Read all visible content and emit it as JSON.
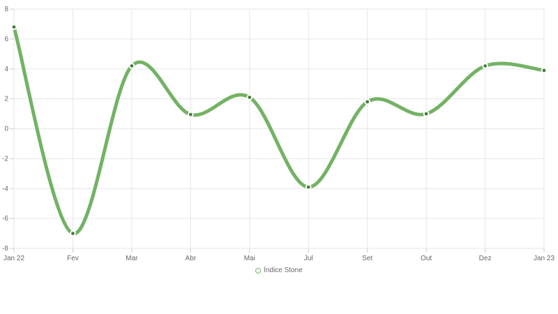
{
  "chart_data": {
    "type": "line",
    "smooth": true,
    "categories": [
      "Jan 22",
      "Fev",
      "Mar",
      "Abr",
      "Mai",
      "Jul",
      "Set",
      "Out",
      "Dez",
      "Jan 23"
    ],
    "series": [
      {
        "name": "Índice Stone",
        "values": [
          6.8,
          -7.0,
          4.2,
          0.95,
          2.1,
          -3.9,
          1.8,
          1.0,
          4.2,
          3.9
        ]
      }
    ],
    "xlabel": "",
    "ylabel": "",
    "title": "",
    "ylim": [
      -8,
      8
    ],
    "y_ticks": [
      8,
      6,
      4,
      2,
      0,
      -2,
      -4,
      -6,
      -8
    ],
    "grid": true,
    "legend_position": "bottom",
    "colors": {
      "line": "#73b264",
      "marker": "#4d7a42",
      "marker_ring": "#ffffff",
      "grid": "#e6e6e6",
      "tick": "#cccccc",
      "axis_label": "#666666",
      "background": "#ffffff"
    }
  }
}
